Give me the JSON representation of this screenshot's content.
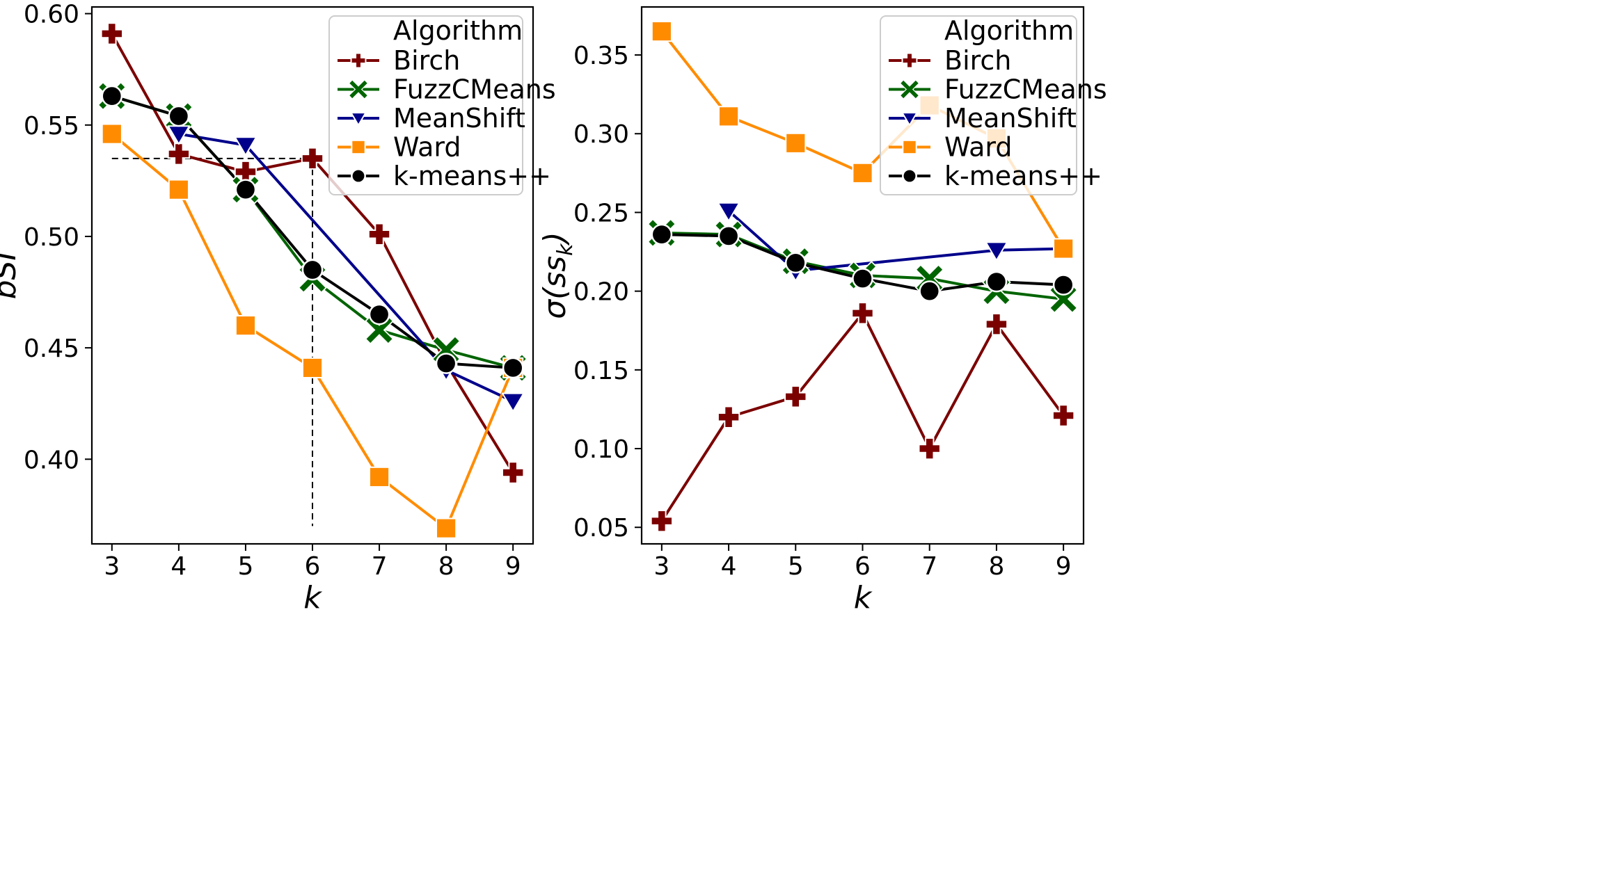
{
  "chart_data": [
    {
      "type": "line",
      "xlabel": "k",
      "ylabel": "bSI",
      "x": [
        3,
        4,
        5,
        6,
        7,
        8,
        9
      ],
      "xlim": [
        2.7,
        9.3
      ],
      "ylim": [
        0.362,
        0.603
      ],
      "yticks": [
        "0.40",
        "0.45",
        "0.50",
        "0.55",
        "0.60"
      ],
      "grid": false,
      "legend_title": "Algorithm",
      "legend_position": "top-right",
      "annotations": [
        {
          "type": "hline",
          "y": 0.535,
          "x_from": 3,
          "x_to": 6
        },
        {
          "type": "vline",
          "x": 6,
          "y_from": 0.535,
          "y_to": 0.37
        }
      ],
      "series": [
        {
          "name": "Birch",
          "color": "#7b0000",
          "marker": "plus",
          "x": [
            3,
            4,
            5,
            6,
            7,
            8,
            9
          ],
          "values": [
            0.591,
            0.537,
            0.529,
            0.535,
            0.501,
            0.443,
            0.394
          ]
        },
        {
          "name": "FuzzCMeans",
          "color": "#006400",
          "marker": "x",
          "x": [
            3,
            4,
            5,
            6,
            7,
            8,
            9
          ],
          "values": [
            0.563,
            0.554,
            0.521,
            0.481,
            0.458,
            0.449,
            0.441
          ]
        },
        {
          "name": "MeanShift",
          "color": "#00008b",
          "marker": "triangle-down",
          "x": [
            4,
            5,
            8,
            9
          ],
          "values": [
            0.546,
            0.541,
            0.44,
            0.426
          ]
        },
        {
          "name": "Ward",
          "color": "#ff8c00",
          "marker": "square",
          "x": [
            3,
            4,
            5,
            6,
            7,
            8,
            9
          ],
          "values": [
            0.546,
            0.521,
            0.46,
            0.441,
            0.392,
            0.369,
            0.441
          ]
        },
        {
          "name": "k-means++",
          "color": "#000000",
          "marker": "circle",
          "x": [
            3,
            4,
            5,
            6,
            7,
            8,
            9
          ],
          "values": [
            0.563,
            0.554,
            0.521,
            0.485,
            0.465,
            0.443,
            0.441
          ]
        }
      ]
    },
    {
      "type": "line",
      "xlabel": "k",
      "ylabel": "σ(s_k)",
      "ylabel_main": "σ(s",
      "ylabel_sub": "k",
      "ylabel_close": ")",
      "x": [
        3,
        4,
        5,
        6,
        7,
        8,
        9
      ],
      "xlim": [
        2.7,
        9.3
      ],
      "ylim": [
        0.0395,
        0.3805
      ],
      "yticks": [
        "0.05",
        "0.10",
        "0.15",
        "0.20",
        "0.25",
        "0.30",
        "0.35"
      ],
      "grid": false,
      "legend_title": "Algorithm",
      "legend_position": "top-right",
      "series": [
        {
          "name": "Birch",
          "color": "#7b0000",
          "marker": "plus",
          "x": [
            3,
            4,
            5,
            6,
            7,
            8,
            9
          ],
          "values": [
            0.054,
            0.12,
            0.133,
            0.186,
            0.1,
            0.179,
            0.121
          ]
        },
        {
          "name": "FuzzCMeans",
          "color": "#006400",
          "marker": "x",
          "x": [
            3,
            4,
            5,
            6,
            7,
            8,
            9
          ],
          "values": [
            0.237,
            0.236,
            0.219,
            0.21,
            0.208,
            0.2,
            0.195
          ]
        },
        {
          "name": "MeanShift",
          "color": "#00008b",
          "marker": "triangle-down",
          "x": [
            4,
            5,
            8,
            9
          ],
          "values": [
            0.251,
            0.213,
            0.226,
            0.227
          ]
        },
        {
          "name": "Ward",
          "color": "#ff8c00",
          "marker": "square",
          "x": [
            3,
            4,
            5,
            6,
            7,
            8,
            9
          ],
          "values": [
            0.365,
            0.311,
            0.294,
            0.275,
            0.318,
            0.297,
            0.227
          ]
        },
        {
          "name": "k-means++",
          "color": "#000000",
          "marker": "circle",
          "x": [
            3,
            4,
            5,
            6,
            7,
            8,
            9
          ],
          "values": [
            0.236,
            0.235,
            0.218,
            0.208,
            0.2,
            0.206,
            0.204
          ]
        }
      ]
    }
  ]
}
